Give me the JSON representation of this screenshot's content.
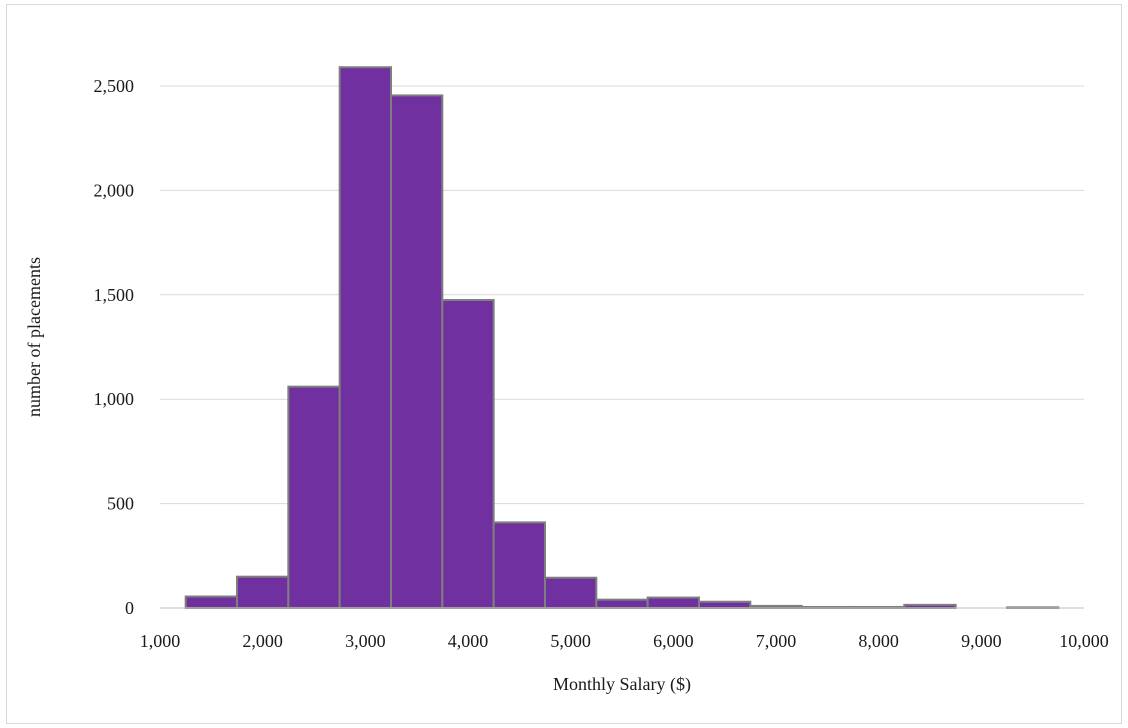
{
  "chart_data": {
    "type": "bar",
    "title": "",
    "xlabel": "Monthly Salary ($)",
    "ylabel": "number of placements",
    "xlim": [
      1000,
      10000
    ],
    "ylim": [
      0,
      2500
    ],
    "x_ticks": [
      1000,
      2000,
      3000,
      4000,
      5000,
      6000,
      7000,
      8000,
      9000,
      10000
    ],
    "x_tick_labels": [
      "1,000",
      "2,000",
      "3,000",
      "4,000",
      "5,000",
      "6,000",
      "7,000",
      "8,000",
      "9,000",
      "10,000"
    ],
    "y_ticks": [
      0,
      500,
      1000,
      1500,
      2000,
      2500
    ],
    "y_tick_labels": [
      "0",
      "500",
      "1,000",
      "1,500",
      "2,000",
      "2,500"
    ],
    "grid": true,
    "legend": "none",
    "bar_color": "#7030a0",
    "bar_edge_color": "#7f7f7f",
    "bins": [
      {
        "x0": 1250,
        "x1": 1750,
        "count": 55
      },
      {
        "x0": 1750,
        "x1": 2250,
        "count": 150
      },
      {
        "x0": 2250,
        "x1": 2750,
        "count": 1060
      },
      {
        "x0": 2750,
        "x1": 3250,
        "count": 2590
      },
      {
        "x0": 3250,
        "x1": 3750,
        "count": 2455
      },
      {
        "x0": 3750,
        "x1": 4250,
        "count": 1475
      },
      {
        "x0": 4250,
        "x1": 4750,
        "count": 410
      },
      {
        "x0": 4750,
        "x1": 5250,
        "count": 145
      },
      {
        "x0": 5250,
        "x1": 5750,
        "count": 40
      },
      {
        "x0": 5750,
        "x1": 6250,
        "count": 50
      },
      {
        "x0": 6250,
        "x1": 6750,
        "count": 30
      },
      {
        "x0": 6750,
        "x1": 7250,
        "count": 10
      },
      {
        "x0": 7250,
        "x1": 7750,
        "count": 5
      },
      {
        "x0": 7750,
        "x1": 8250,
        "count": 5
      },
      {
        "x0": 8250,
        "x1": 8750,
        "count": 15
      },
      {
        "x0": 8750,
        "x1": 9250,
        "count": 0
      },
      {
        "x0": 9250,
        "x1": 9750,
        "count": 3
      }
    ]
  }
}
